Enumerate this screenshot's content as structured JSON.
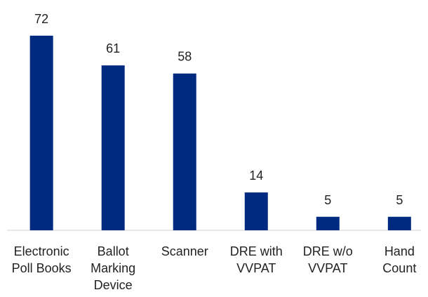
{
  "chart_data": {
    "type": "bar",
    "categories": [
      "Electronic Poll Books",
      "Ballot Marking Device",
      "Scanner",
      "DRE with VVPAT",
      "DRE w/o VVPAT",
      "Hand Count"
    ],
    "values": [
      72,
      61,
      58,
      14,
      5,
      5
    ],
    "color": "#002a80",
    "ylim": [
      0,
      80
    ]
  }
}
